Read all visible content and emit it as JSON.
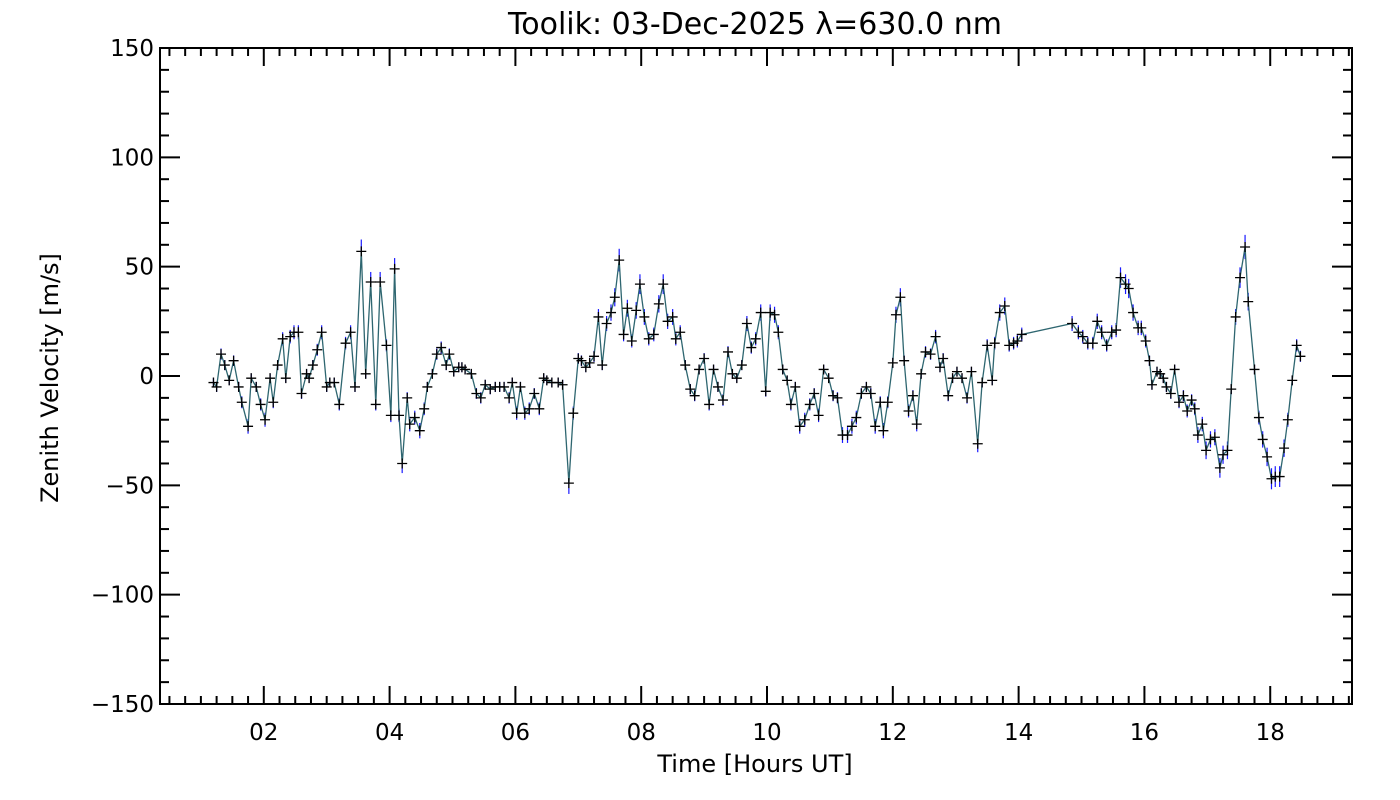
{
  "chart_data": {
    "type": "scatter",
    "title": "Toolik: 03-Dec-2025 λ=630.0 nm",
    "xlabel": "Time [Hours UT]",
    "ylabel": "Zenith Velocity [m/s]",
    "xlim": [
      0.35,
      19.3
    ],
    "ylim": [
      -150,
      150
    ],
    "x_tick_labels": [
      "02",
      "04",
      "06",
      "08",
      "10",
      "12",
      "14",
      "16",
      "18"
    ],
    "x_tick_values": [
      2,
      4,
      6,
      8,
      10,
      12,
      14,
      16,
      18
    ],
    "y_tick_labels": [
      "150",
      "100",
      "50",
      "0",
      "−50",
      "−100",
      "−150"
    ],
    "y_tick_values": [
      150,
      100,
      50,
      0,
      -50,
      -100,
      -150
    ],
    "grid": false,
    "legend": "none",
    "colors": {
      "line": "#2e6670",
      "error_bar": "#1a1aff",
      "marker": "#000000",
      "axes": "#000000"
    },
    "series": [
      {
        "marker": "plus",
        "points": [
          [
            1.2,
            -3
          ],
          [
            1.25,
            -5
          ],
          [
            1.32,
            10
          ],
          [
            1.38,
            5
          ],
          [
            1.45,
            -2
          ],
          [
            1.52,
            7
          ],
          [
            1.6,
            -5
          ],
          [
            1.65,
            -12
          ],
          [
            1.75,
            -23
          ],
          [
            1.8,
            -1
          ],
          [
            1.88,
            -5
          ],
          [
            1.95,
            -13
          ],
          [
            2.02,
            -20
          ],
          [
            2.1,
            -1
          ],
          [
            2.15,
            -12
          ],
          [
            2.22,
            5
          ],
          [
            2.3,
            17
          ],
          [
            2.35,
            -1
          ],
          [
            2.42,
            18
          ],
          [
            2.48,
            20
          ],
          [
            2.55,
            20
          ],
          [
            2.6,
            -8
          ],
          [
            2.68,
            1
          ],
          [
            2.72,
            -1
          ],
          [
            2.78,
            5
          ],
          [
            2.85,
            12
          ],
          [
            2.92,
            20
          ],
          [
            3.0,
            -5
          ],
          [
            3.05,
            -3
          ],
          [
            3.12,
            -3
          ],
          [
            3.2,
            -13
          ],
          [
            3.3,
            15
          ],
          [
            3.38,
            20
          ],
          [
            3.45,
            -5
          ],
          [
            3.55,
            57
          ],
          [
            3.62,
            1
          ],
          [
            3.7,
            43
          ],
          [
            3.78,
            -13
          ],
          [
            3.85,
            43
          ],
          [
            3.95,
            14
          ],
          [
            4.02,
            -18
          ],
          [
            4.08,
            49
          ],
          [
            4.15,
            -18
          ],
          [
            4.2,
            -40
          ],
          [
            4.28,
            -10
          ],
          [
            4.32,
            -22
          ],
          [
            4.4,
            -19
          ],
          [
            4.48,
            -25
          ],
          [
            4.55,
            -15
          ],
          [
            4.6,
            -5
          ],
          [
            4.68,
            1
          ],
          [
            4.75,
            10
          ],
          [
            4.82,
            13
          ],
          [
            4.9,
            5
          ],
          [
            4.95,
            10
          ],
          [
            5.02,
            2
          ],
          [
            5.1,
            4
          ],
          [
            5.15,
            4
          ],
          [
            5.2,
            3
          ],
          [
            5.3,
            1
          ],
          [
            5.38,
            -8
          ],
          [
            5.45,
            -10
          ],
          [
            5.52,
            -4
          ],
          [
            5.6,
            -6
          ],
          [
            5.68,
            -5
          ],
          [
            5.75,
            -5
          ],
          [
            5.82,
            -5
          ],
          [
            5.9,
            -10
          ],
          [
            5.95,
            -3
          ],
          [
            6.02,
            -17
          ],
          [
            6.08,
            -5
          ],
          [
            6.15,
            -17
          ],
          [
            6.22,
            -15
          ],
          [
            6.3,
            -8
          ],
          [
            6.38,
            -15
          ],
          [
            6.45,
            -1
          ],
          [
            6.5,
            -2
          ],
          [
            6.58,
            -3
          ],
          [
            6.68,
            -3
          ],
          [
            6.75,
            -4
          ],
          [
            6.85,
            -49
          ],
          [
            6.92,
            -17
          ],
          [
            7.0,
            8
          ],
          [
            7.05,
            7
          ],
          [
            7.12,
            4
          ],
          [
            7.18,
            6
          ],
          [
            7.25,
            9
          ],
          [
            7.32,
            27
          ],
          [
            7.38,
            5
          ],
          [
            7.45,
            24
          ],
          [
            7.52,
            29
          ],
          [
            7.58,
            36
          ],
          [
            7.65,
            53
          ],
          [
            7.72,
            19
          ],
          [
            7.78,
            31
          ],
          [
            7.85,
            16
          ],
          [
            7.92,
            30
          ],
          [
            7.98,
            42
          ],
          [
            8.05,
            27
          ],
          [
            8.12,
            17
          ],
          [
            8.2,
            19
          ],
          [
            8.28,
            33
          ],
          [
            8.35,
            42
          ],
          [
            8.42,
            25
          ],
          [
            8.5,
            27
          ],
          [
            8.55,
            17
          ],
          [
            8.62,
            20
          ],
          [
            8.7,
            5
          ],
          [
            8.78,
            -6
          ],
          [
            8.85,
            -9
          ],
          [
            8.92,
            3
          ],
          [
            9.0,
            8
          ],
          [
            9.08,
            -13
          ],
          [
            9.15,
            3
          ],
          [
            9.22,
            -5
          ],
          [
            9.3,
            -11
          ],
          [
            9.38,
            11
          ],
          [
            9.45,
            1
          ],
          [
            9.52,
            -1
          ],
          [
            9.6,
            5
          ],
          [
            9.68,
            24
          ],
          [
            9.75,
            13
          ],
          [
            9.82,
            17
          ],
          [
            9.9,
            29
          ],
          [
            9.98,
            -7
          ],
          [
            10.05,
            29
          ],
          [
            10.12,
            28
          ],
          [
            10.18,
            20
          ],
          [
            10.25,
            3
          ],
          [
            10.32,
            -2
          ],
          [
            10.38,
            -13
          ],
          [
            10.45,
            -5
          ],
          [
            10.52,
            -23
          ],
          [
            10.6,
            -20
          ],
          [
            10.68,
            -13
          ],
          [
            10.75,
            -8
          ],
          [
            10.82,
            -18
          ],
          [
            10.9,
            3
          ],
          [
            10.98,
            -1
          ],
          [
            11.05,
            -9
          ],
          [
            11.12,
            -10
          ],
          [
            11.2,
            -27
          ],
          [
            11.28,
            -27
          ],
          [
            11.35,
            -23
          ],
          [
            11.42,
            -19
          ],
          [
            11.5,
            -8
          ],
          [
            11.58,
            -5
          ],
          [
            11.65,
            -8
          ],
          [
            11.72,
            -23
          ],
          [
            11.8,
            -12
          ],
          [
            11.85,
            -25
          ],
          [
            11.92,
            -12
          ],
          [
            12.0,
            6
          ],
          [
            12.05,
            28
          ],
          [
            12.12,
            36
          ],
          [
            12.18,
            7
          ],
          [
            12.25,
            -16
          ],
          [
            12.32,
            -9
          ],
          [
            12.38,
            -22
          ],
          [
            12.45,
            1
          ],
          [
            12.52,
            11
          ],
          [
            12.6,
            10
          ],
          [
            12.68,
            18
          ],
          [
            12.75,
            4
          ],
          [
            12.8,
            8
          ],
          [
            12.88,
            -9
          ],
          [
            12.95,
            -1
          ],
          [
            13.02,
            2
          ],
          [
            13.1,
            -1
          ],
          [
            13.18,
            -10
          ],
          [
            13.25,
            2
          ],
          [
            13.35,
            -31
          ],
          [
            13.42,
            -3
          ],
          [
            13.5,
            14
          ],
          [
            13.58,
            -2
          ],
          [
            13.62,
            15
          ],
          [
            13.7,
            29
          ],
          [
            13.78,
            32
          ],
          [
            13.85,
            14
          ],
          [
            13.92,
            15
          ],
          [
            13.98,
            16
          ],
          [
            14.05,
            19
          ],
          [
            14.85,
            24
          ],
          [
            14.95,
            20
          ],
          [
            15.02,
            18
          ],
          [
            15.1,
            15
          ],
          [
            15.18,
            15
          ],
          [
            15.25,
            25
          ],
          [
            15.32,
            20
          ],
          [
            15.4,
            14
          ],
          [
            15.48,
            20
          ],
          [
            15.55,
            21
          ],
          [
            15.62,
            45
          ],
          [
            15.7,
            42
          ],
          [
            15.75,
            40
          ],
          [
            15.82,
            29
          ],
          [
            15.9,
            22
          ],
          [
            15.95,
            22
          ],
          [
            16.02,
            16
          ],
          [
            16.08,
            7
          ],
          [
            16.12,
            -4
          ],
          [
            16.2,
            2
          ],
          [
            16.25,
            1
          ],
          [
            16.3,
            -1
          ],
          [
            16.35,
            -5
          ],
          [
            16.42,
            -8
          ],
          [
            16.48,
            3
          ],
          [
            16.55,
            -12
          ],
          [
            16.62,
            -9
          ],
          [
            16.68,
            -16
          ],
          [
            16.75,
            -11
          ],
          [
            16.8,
            -15
          ],
          [
            16.85,
            -27
          ],
          [
            16.92,
            -22
          ],
          [
            16.98,
            -34
          ],
          [
            17.05,
            -29
          ],
          [
            17.12,
            -28
          ],
          [
            17.2,
            -42
          ],
          [
            17.25,
            -36
          ],
          [
            17.32,
            -34
          ],
          [
            17.38,
            -6
          ],
          [
            17.45,
            27
          ],
          [
            17.52,
            45
          ],
          [
            17.6,
            59
          ],
          [
            17.65,
            34
          ],
          [
            17.75,
            3
          ],
          [
            17.82,
            -19
          ],
          [
            17.88,
            -29
          ],
          [
            17.95,
            -37
          ],
          [
            18.02,
            -47
          ],
          [
            18.08,
            -46
          ],
          [
            18.15,
            -46
          ],
          [
            18.22,
            -33
          ],
          [
            18.28,
            -20
          ],
          [
            18.35,
            -2
          ],
          [
            18.42,
            14
          ],
          [
            18.48,
            9
          ]
        ]
      }
    ]
  }
}
